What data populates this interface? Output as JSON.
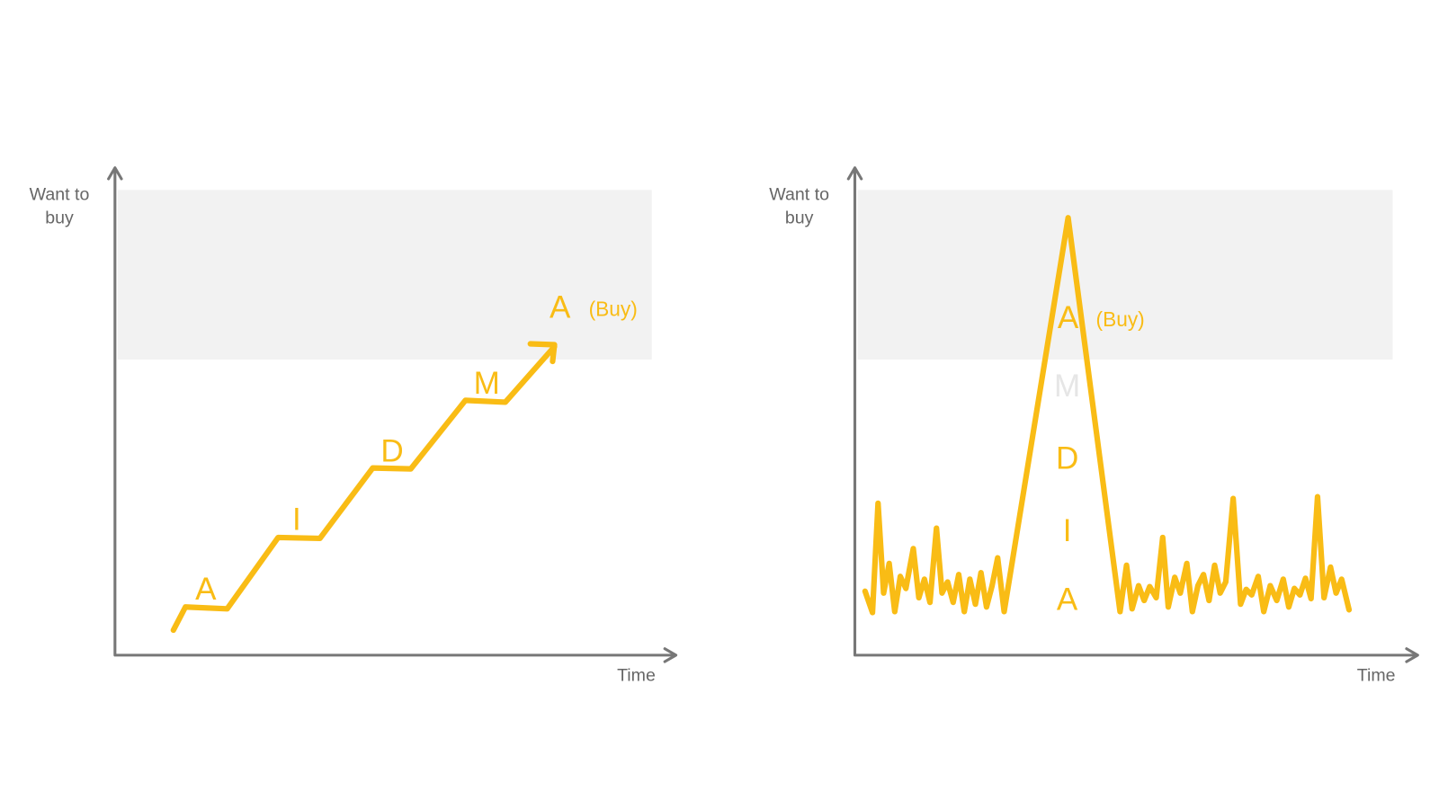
{
  "panels": [
    {
      "y_axis_label": [
        "Want to",
        "buy"
      ],
      "x_axis_label": "Time",
      "stages": [
        "A",
        "I",
        "D",
        "M",
        "A"
      ],
      "final_note": "(Buy)"
    },
    {
      "y_axis_label": [
        "Want to",
        "buy"
      ],
      "x_axis_label": "Time",
      "stages": [
        "A",
        "I",
        "D",
        "M",
        "A"
      ],
      "final_note": "(Buy)"
    }
  ]
}
